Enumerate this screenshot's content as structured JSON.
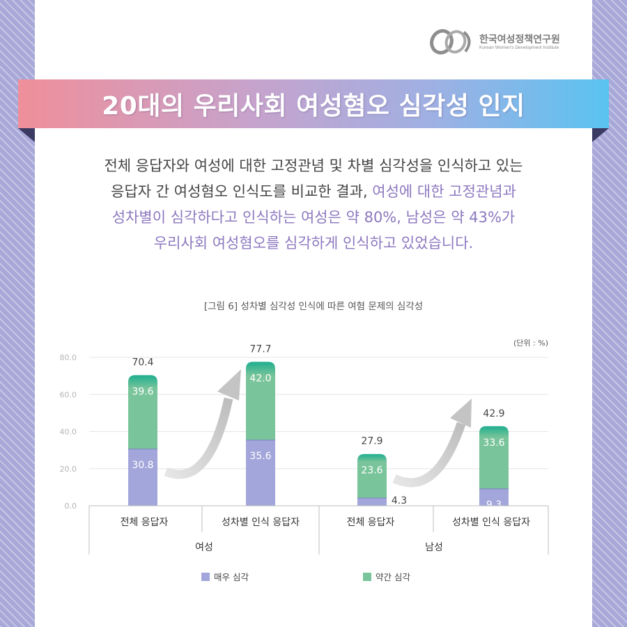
{
  "logo": {
    "name": "한국여성정책연구원",
    "subtitle": "Korean Women's Development Institute"
  },
  "banner": {
    "title": "20대의 우리사회 여성혐오 심각성 인지"
  },
  "description": {
    "line1": "전체 응답자와 여성에 대한 고정관념 및 차별 심각성을 인식하고 있는",
    "line2_plain": "응답자 간 여성혐오 인식도를 비교한 결과, ",
    "line2_highlight": "여성에 대한 고정관념과",
    "line3_highlight": "성차별이 심각하다고 인식하는 여성은 약 80%, 남성은 약 43%가",
    "line4_highlight": "우리사회 여성혐오를 심각하게 인식하고 있었습니다."
  },
  "colors": {
    "very_serious": "#a3a6da",
    "somewhat_serious": "#79c49a",
    "somewhat_serious_top": "#1eae8f",
    "highlight_text": "#8c78bf"
  },
  "chart_data": {
    "type": "bar",
    "stacked": true,
    "title": "[그림 6] 성차별 심각성 인식에 따른 여혐 문제의 심각성",
    "unit_label": "(단위 : %)",
    "ylim": [
      0,
      80
    ],
    "yticks": [
      "80.0",
      "60.0",
      "40.0",
      "20.0",
      "0.0"
    ],
    "grid": true,
    "legend_position": "bottom",
    "categories": [
      "전체 응답자",
      "성차별 인식 응답자",
      "전체 응답자",
      "성차별 인식 응답자"
    ],
    "groups": [
      {
        "label": "여성",
        "categories": [
          0,
          1
        ]
      },
      {
        "label": "남성",
        "categories": [
          2,
          3
        ]
      }
    ],
    "series": [
      {
        "name": "매우 심각",
        "values": [
          30.8,
          35.6,
          4.3,
          9.3
        ]
      },
      {
        "name": "약간 심각",
        "values": [
          39.6,
          42.0,
          23.6,
          33.6
        ]
      }
    ],
    "totals": [
      70.4,
      77.7,
      27.9,
      42.9
    ],
    "value_labels": {
      "very_serious": [
        "30.8",
        "35.6",
        "4.3",
        "9.3"
      ],
      "somewhat_serious": [
        "39.6",
        "42.0",
        "23.6",
        "33.6"
      ],
      "totals": [
        "70.4",
        "77.7",
        "27.9",
        "42.9"
      ]
    }
  }
}
